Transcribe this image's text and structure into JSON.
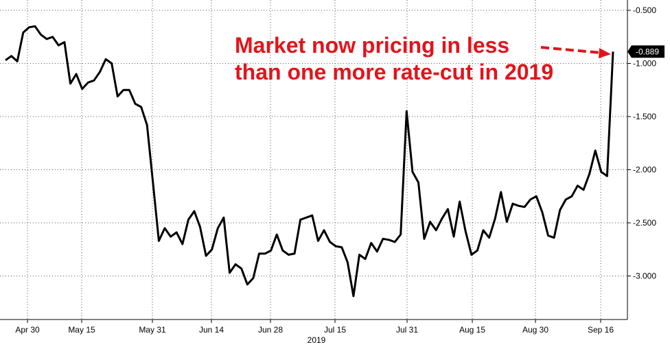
{
  "chart_data": {
    "type": "line",
    "title": "",
    "xlabel": "2019",
    "ylabel": "",
    "ylim": [
      -3.45,
      -0.4
    ],
    "grid": true,
    "x_ticks": [
      "Apr 30",
      "May 15",
      "May 31",
      "Jun 14",
      "Jun 28",
      "Jul 15",
      "Jul 31",
      "Aug 15",
      "Aug 30",
      "Sep 16"
    ],
    "y_ticks": [
      "-0.500",
      "-1.000",
      "-1.500",
      "-2.000",
      "-2.500",
      "-3.000"
    ],
    "y_tick_values": [
      -0.5,
      -1.0,
      -1.5,
      -2.0,
      -2.5,
      -3.0
    ],
    "series": [
      {
        "name": "",
        "color": "#000000",
        "values": [
          -0.97,
          -0.93,
          -0.98,
          -0.71,
          -0.66,
          -0.65,
          -0.73,
          -0.77,
          -0.75,
          -0.83,
          -0.8,
          -1.19,
          -1.1,
          -1.24,
          -1.18,
          -1.16,
          -1.08,
          -0.96,
          -1.0,
          -1.31,
          -1.25,
          -1.25,
          -1.38,
          -1.41,
          -1.58,
          -2.12,
          -2.67,
          -2.55,
          -2.63,
          -2.59,
          -2.7,
          -2.47,
          -2.39,
          -2.54,
          -2.81,
          -2.75,
          -2.55,
          -2.45,
          -2.97,
          -2.89,
          -2.93,
          -3.08,
          -3.02,
          -2.79,
          -2.79,
          -2.76,
          -2.61,
          -2.76,
          -2.8,
          -2.79,
          -2.47,
          -2.45,
          -2.43,
          -2.67,
          -2.57,
          -2.68,
          -2.72,
          -2.73,
          -2.87,
          -3.19,
          -2.8,
          -2.84,
          -2.69,
          -2.77,
          -2.65,
          -2.66,
          -2.68,
          -2.61,
          -1.45,
          -2.02,
          -2.12,
          -2.65,
          -2.49,
          -2.57,
          -2.46,
          -2.37,
          -2.63,
          -2.3,
          -2.58,
          -2.8,
          -2.76,
          -2.57,
          -2.64,
          -2.46,
          -2.21,
          -2.49,
          -2.32,
          -2.34,
          -2.35,
          -2.28,
          -2.25,
          -2.4,
          -2.62,
          -2.64,
          -2.38,
          -2.28,
          -2.25,
          -2.15,
          -2.19,
          -2.04,
          -1.82,
          -2.02,
          -2.06,
          -0.889
        ]
      }
    ],
    "last_value_label": "-0.889",
    "annotation": {
      "lines": [
        "Market now pricing in less",
        "than one more rate-cut in 2019"
      ],
      "color": "#e2141b"
    }
  }
}
